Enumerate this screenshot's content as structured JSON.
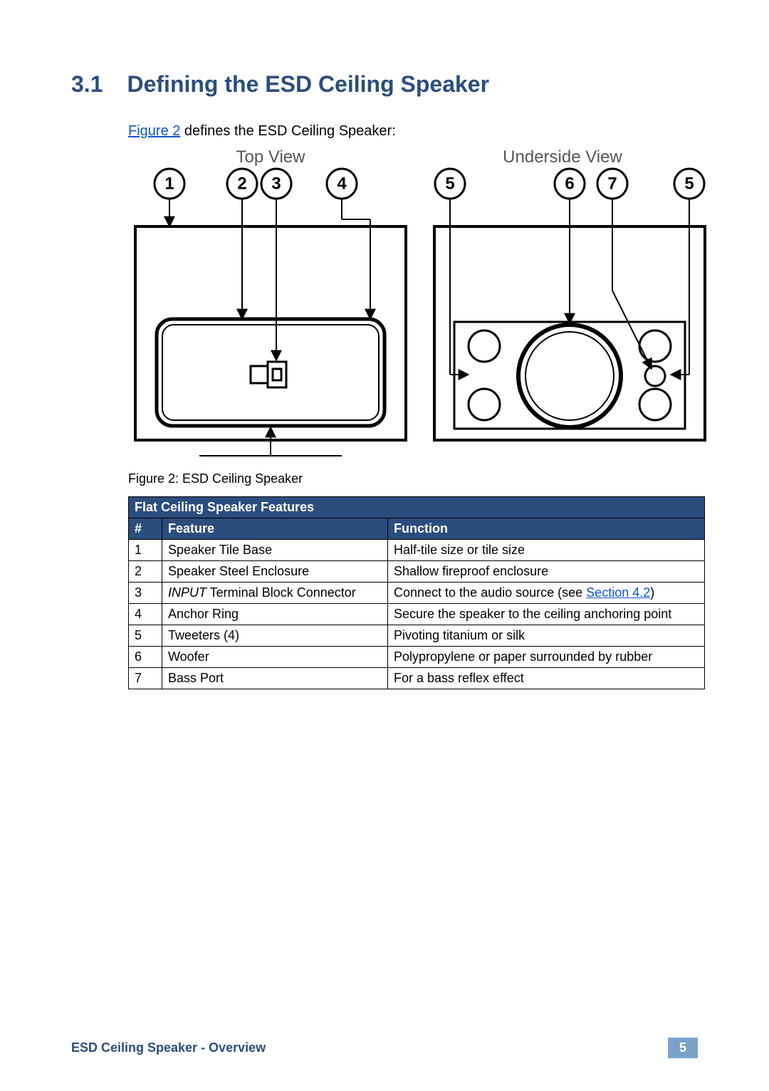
{
  "heading": {
    "number": "3.1",
    "title": "Defining the ESD Ceiling Speaker"
  },
  "intro": {
    "figure_link_text": "Figure 2",
    "rest": " defines the ESD Ceiling Speaker:"
  },
  "diagram": {
    "top_view_label": "Top View",
    "underside_view_label": "Underside View",
    "callouts_top": [
      "1",
      "2",
      "3",
      "4"
    ],
    "callouts_under_left": "5",
    "callouts_under_mid1": "6",
    "callouts_under_mid2": "7",
    "callouts_under_right": "5",
    "stroke": "#000000",
    "stroke_thin": 2,
    "stroke_mid": 3,
    "stroke_thick": 4,
    "circle_r": 21
  },
  "figure_caption": "Figure 2: ESD Ceiling Speaker",
  "table": {
    "title": "Flat Ceiling Speaker Features",
    "columns": [
      "#",
      "Feature",
      "Function"
    ],
    "rows": [
      {
        "n": "1",
        "feature_prefix": "",
        "feature": "Speaker Tile Base",
        "function": "Half-tile size or tile size",
        "link": null
      },
      {
        "n": "2",
        "feature_prefix": "",
        "feature": "Speaker Steel Enclosure",
        "function": "Shallow fireproof enclosure",
        "link": null
      },
      {
        "n": "3",
        "feature_prefix": "INPUT",
        "feature": " Terminal Block Connector",
        "function": "Connect to the audio source (see ",
        "link": "Section 4.2",
        "function_suffix": ")"
      },
      {
        "n": "4",
        "feature_prefix": "",
        "feature": "Anchor Ring",
        "function": "Secure the speaker to the ceiling anchoring point",
        "link": null
      },
      {
        "n": "5",
        "feature_prefix": "",
        "feature": "Tweeters (4)",
        "function": "Pivoting titanium or silk",
        "link": null
      },
      {
        "n": "6",
        "feature_prefix": "",
        "feature": "Woofer",
        "function": "Polypropylene or paper surrounded by rubber",
        "link": null
      },
      {
        "n": "7",
        "feature_prefix": "",
        "feature": "Bass Port",
        "function": "For a bass reflex effect",
        "link": null
      }
    ],
    "header_bg": "#2b4d7e",
    "header_fg": "#ffffff"
  },
  "footer": {
    "left": "ESD Ceiling Speaker - Overview",
    "page": "5"
  }
}
